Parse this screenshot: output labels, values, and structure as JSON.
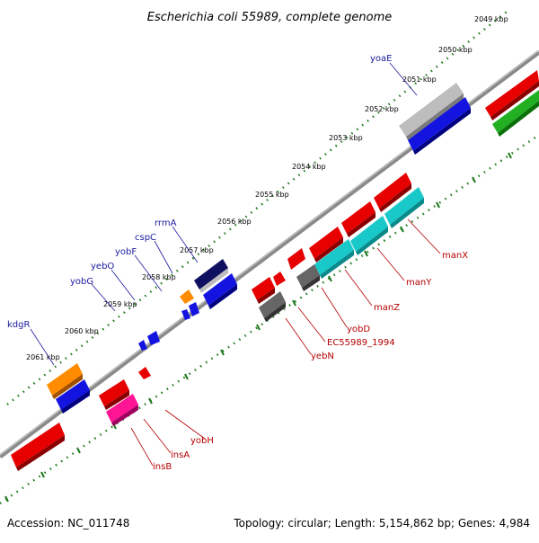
{
  "title": "Escherichia coli 55989, complete genome",
  "footer": {
    "accession": "Accession: NC_011748",
    "summary": "Topology: circular; Length: 5,154,862 bp; Genes: 4,984"
  },
  "colors": {
    "backbone": "#7a7a7a",
    "tick": "#1e7a1e",
    "gene_label_forward": "#1a1aa0",
    "gene_label_reverse": "#b50000"
  },
  "kbp_ticks": [
    "2049 kbp",
    "2050 kbp",
    "2051 kbp",
    "2052 kbp",
    "2053 kbp",
    "2054 kbp",
    "2055 kbp",
    "2056 kbp",
    "2057 kbp",
    "2058 kbp",
    "2059 kbp",
    "2060 kbp",
    "2061 kbp"
  ],
  "gene_labels": {
    "yoaE": "yoaE",
    "rrmA": "rrmA",
    "cspC": "cspC",
    "yobF": "yobF",
    "yebO": "yebO",
    "yobG": "yobG",
    "kdgR": "kdgR",
    "manX": "manX",
    "manY": "manY",
    "manZ": "manZ",
    "yobD": "yobD",
    "EC55989_1994": "EC55989_1994",
    "yebN": "yebN",
    "yobH": "yobH",
    "insA": "insA",
    "insB": "insB"
  }
}
